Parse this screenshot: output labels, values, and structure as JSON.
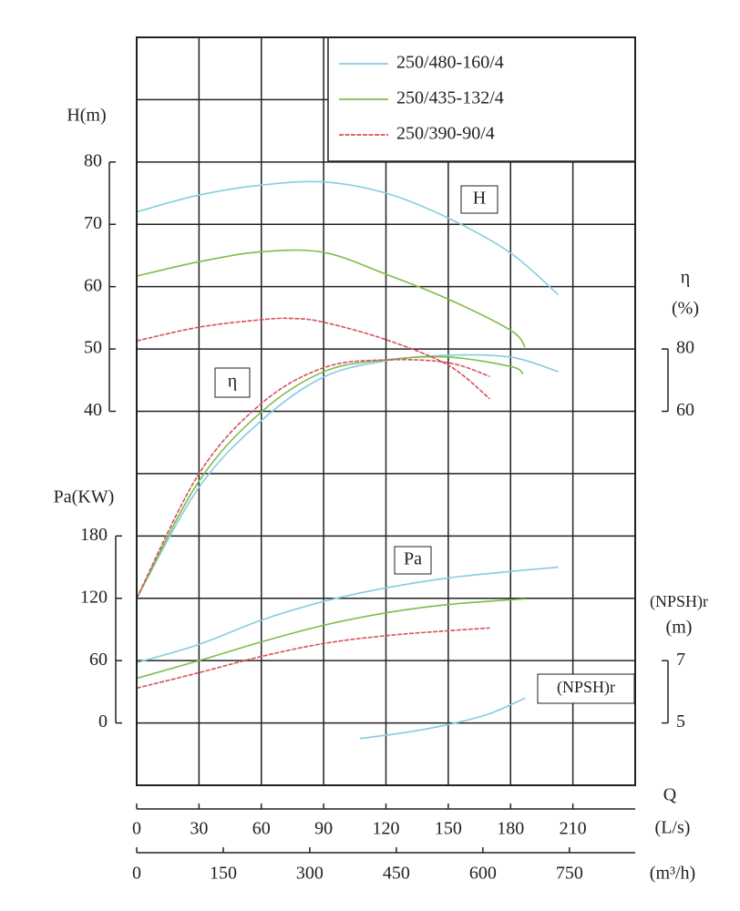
{
  "chart_data": {
    "type": "line",
    "xlim": [
      0,
      240
    ],
    "xticks": [
      0,
      30,
      60,
      90,
      120,
      150,
      180,
      210
    ],
    "x_label": "Q",
    "x_unit": "(L/s)",
    "x2lim": [
      0,
      864
    ],
    "x2ticks": [
      0,
      150,
      300,
      450,
      600,
      750
    ],
    "x2_unit": "(m³/h)",
    "axes": {
      "h": {
        "label": "H(m)",
        "lim": [
          -20,
          100
        ],
        "ticks": [
          40,
          50,
          60,
          70,
          80
        ]
      },
      "pa": {
        "label": "Pa(KW)",
        "lim": [
          -60,
          660
        ],
        "ticks": [
          0,
          60,
          120,
          180
        ]
      },
      "eta": {
        "label": "η",
        "unit": "(%)",
        "lim": [
          -60,
          180
        ],
        "ticks": [
          60,
          80
        ]
      },
      "npsh": {
        "label": "(NPSH)r",
        "unit": "(m)",
        "lim": [
          3,
          27
        ],
        "ticks": [
          5,
          7
        ]
      }
    },
    "annotations": {
      "h": "H",
      "eta": "η",
      "pa": "Pa",
      "npsh": "(NPSH)r"
    },
    "series": [
      {
        "name": "250/480-160/4",
        "color": "#86cce0",
        "h": {
          "x": [
            0,
            30,
            60,
            90,
            120,
            150,
            180,
            203
          ],
          "values": [
            72,
            74.7,
            76.3,
            76.8,
            75,
            71,
            65.4,
            58.7
          ]
        },
        "eta": {
          "x": [
            0,
            30,
            60,
            90,
            120,
            150,
            180,
            203
          ],
          "values": [
            0,
            35.6,
            57,
            71,
            76.2,
            78,
            77.4,
            72.7
          ]
        },
        "pa": {
          "x": [
            0,
            30,
            60,
            90,
            120,
            150,
            180,
            203
          ],
          "values": [
            58,
            75.6,
            99,
            117,
            130,
            139.6,
            145.8,
            150
          ]
        },
        "npsh": {
          "x": [
            107.5,
            130,
            150,
            170,
            187
          ],
          "values": [
            4.5,
            4.7,
            4.95,
            5.3,
            5.8
          ]
        }
      },
      {
        "name": "250/435-132/4",
        "color": "#7cbd4c",
        "h": {
          "x": [
            0,
            30,
            60,
            90,
            120,
            150,
            180,
            187
          ],
          "values": [
            61.7,
            64,
            65.6,
            65.5,
            62,
            58,
            53,
            50.3
          ]
        },
        "eta": {
          "x": [
            0,
            30,
            60,
            90,
            120,
            150,
            180,
            186
          ],
          "values": [
            0,
            37.6,
            59.8,
            72.7,
            76.5,
            77.4,
            74.4,
            72
          ]
        },
        "pa": {
          "x": [
            0,
            30,
            60,
            90,
            120,
            150,
            180,
            187
          ],
          "values": [
            43,
            60,
            78,
            94,
            106,
            114,
            118.6,
            119.5
          ]
        }
      },
      {
        "name": "250/390-90/4",
        "color": "#d9505a",
        "h": {
          "x": [
            0,
            30,
            60,
            75,
            90,
            120,
            150,
            170
          ],
          "values": [
            51.3,
            53.5,
            54.7,
            54.9,
            54.3,
            51.5,
            47.4,
            42
          ]
        },
        "eta": {
          "x": [
            0,
            30,
            60,
            90,
            120,
            150,
            170
          ],
          "values": [
            0,
            40,
            62.5,
            74,
            76.5,
            75.6,
            71.2
          ]
        },
        "pa": {
          "x": [
            0,
            30,
            60,
            90,
            120,
            150,
            170
          ],
          "values": [
            33.5,
            48.4,
            64,
            76.5,
            84,
            88.8,
            91.4
          ]
        }
      }
    ]
  }
}
